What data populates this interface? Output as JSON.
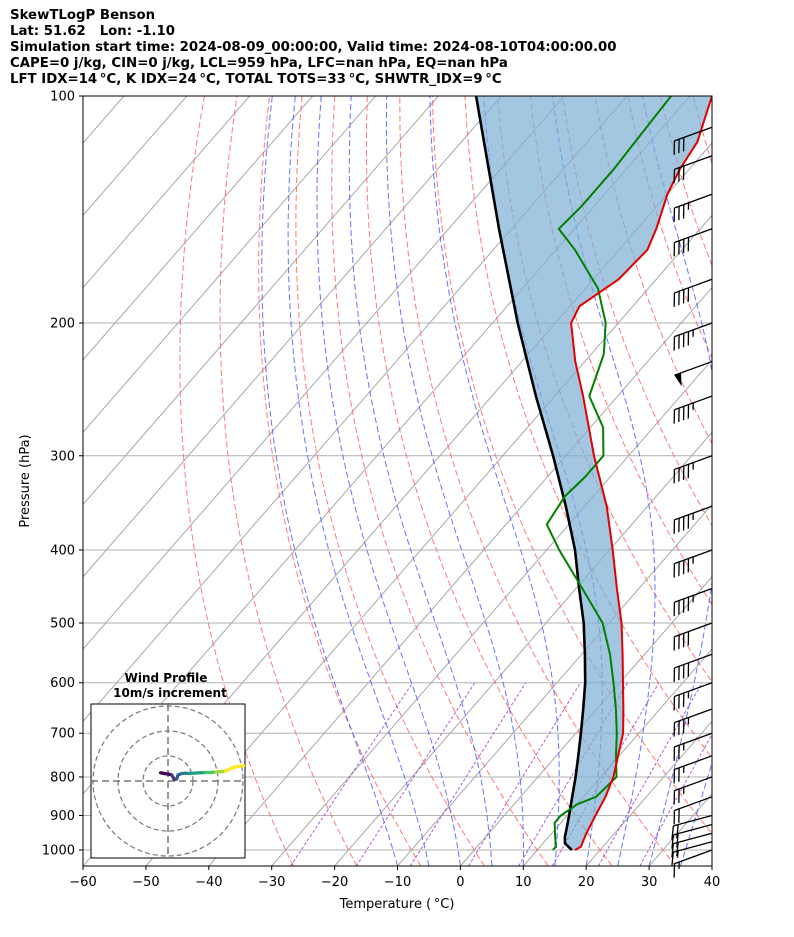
{
  "header": {
    "lines": [
      "SkewTLogP Benson",
      "Lat: 51.62   Lon: -1.10",
      "Simulation start time: 2024-08-09_00:00:00, Valid time: 2024-08-10T04:00:00.00",
      "CAPE=0 j/kg, CIN=0 j/kg, LCL=959 hPa, LFC=nan hPa, EQ=nan hPa",
      "LFT IDX=14 °C, K IDX=24 °C, TOTAL TOTS=33 °C, SHWTR_IDX=9 °C"
    ]
  },
  "chart_data": {
    "type": "skewt",
    "xlabel": "Temperature ( °C)",
    "ylabel": "Pressure (hPa)",
    "xlim": [
      -60,
      40
    ],
    "ylim_hpa": [
      1050,
      100
    ],
    "xticks": [
      -60,
      -50,
      -40,
      -30,
      -20,
      -10,
      0,
      10,
      20,
      30,
      40
    ],
    "yticks": [
      100,
      200,
      300,
      400,
      500,
      600,
      700,
      800,
      900,
      1000
    ],
    "colors": {
      "temperature": "#e00000",
      "dewpoint": "#008000",
      "parcel": "#000000",
      "cin_fill": "#7fb0d5",
      "dry_adiabat": "#ff6060",
      "moist_adiabat": "#4a5cff",
      "mixing_ratio": "#9933cc",
      "isotherm": "#a8a8a8",
      "grid": "#b0b0b0"
    },
    "temperature": [
      {
        "p": 1000,
        "t": 16.0
      },
      {
        "p": 990,
        "t": 16.5
      },
      {
        "p": 950,
        "t": 15.5
      },
      {
        "p": 900,
        "t": 14.5
      },
      {
        "p": 850,
        "t": 13.5
      },
      {
        "p": 800,
        "t": 12.0
      },
      {
        "p": 700,
        "t": 7.5
      },
      {
        "p": 650,
        "t": 4.2
      },
      {
        "p": 600,
        "t": 0.5
      },
      {
        "p": 550,
        "t": -3.5
      },
      {
        "p": 500,
        "t": -8.0
      },
      {
        "p": 450,
        "t": -13.5
      },
      {
        "p": 400,
        "t": -19.5
      },
      {
        "p": 350,
        "t": -26.5
      },
      {
        "p": 300,
        "t": -35.5
      },
      {
        "p": 250,
        "t": -45.5
      },
      {
        "p": 225,
        "t": -51.5
      },
      {
        "p": 200,
        "t": -57.5
      },
      {
        "p": 190,
        "t": -58.5
      },
      {
        "p": 175,
        "t": -56.0
      },
      {
        "p": 160,
        "t": -55.5
      },
      {
        "p": 150,
        "t": -57.0
      },
      {
        "p": 135,
        "t": -60.0
      },
      {
        "p": 125,
        "t": -61.5
      },
      {
        "p": 115,
        "t": -62.5
      },
      {
        "p": 100,
        "t": -66.5
      }
    ],
    "dewpoint": [
      {
        "p": 1000,
        "t": 12.5
      },
      {
        "p": 990,
        "t": 12.5
      },
      {
        "p": 950,
        "t": 10.5
      },
      {
        "p": 920,
        "t": 9.0
      },
      {
        "p": 900,
        "t": 9.0
      },
      {
        "p": 870,
        "t": 10.0
      },
      {
        "p": 850,
        "t": 12.0
      },
      {
        "p": 800,
        "t": 12.5
      },
      {
        "p": 750,
        "t": 9.5
      },
      {
        "p": 700,
        "t": 6.5
      },
      {
        "p": 650,
        "t": 3.0
      },
      {
        "p": 600,
        "t": -1.0
      },
      {
        "p": 550,
        "t": -5.5
      },
      {
        "p": 500,
        "t": -11.0
      },
      {
        "p": 450,
        "t": -19.0
      },
      {
        "p": 400,
        "t": -28.0
      },
      {
        "p": 370,
        "t": -33.5
      },
      {
        "p": 340,
        "t": -34.5
      },
      {
        "p": 320,
        "t": -34.0
      },
      {
        "p": 300,
        "t": -34.0
      },
      {
        "p": 275,
        "t": -38.0
      },
      {
        "p": 250,
        "t": -44.5
      },
      {
        "p": 220,
        "t": -48.0
      },
      {
        "p": 200,
        "t": -52.0
      },
      {
        "p": 180,
        "t": -58.0
      },
      {
        "p": 160,
        "t": -67.0
      },
      {
        "p": 150,
        "t": -72.5
      },
      {
        "p": 140,
        "t": -72.0
      },
      {
        "p": 125,
        "t": -72.0
      },
      {
        "p": 100,
        "t": -73.0
      }
    ],
    "parcel": [
      {
        "p": 1000,
        "t": 15.5
      },
      {
        "p": 980,
        "t": 13.5
      },
      {
        "p": 959,
        "t": 12.5
      },
      {
        "p": 950,
        "t": 12.2
      },
      {
        "p": 900,
        "t": 10.3
      },
      {
        "p": 850,
        "t": 8.2
      },
      {
        "p": 800,
        "t": 6.0
      },
      {
        "p": 750,
        "t": 3.5
      },
      {
        "p": 700,
        "t": 0.8
      },
      {
        "p": 650,
        "t": -2.2
      },
      {
        "p": 600,
        "t": -5.5
      },
      {
        "p": 550,
        "t": -9.5
      },
      {
        "p": 500,
        "t": -14.0
      },
      {
        "p": 450,
        "t": -19.5
      },
      {
        "p": 400,
        "t": -25.5
      },
      {
        "p": 350,
        "t": -33.0
      },
      {
        "p": 300,
        "t": -42.0
      },
      {
        "p": 250,
        "t": -53.0
      },
      {
        "p": 200,
        "t": -66.0
      },
      {
        "p": 150,
        "t": -82.0
      },
      {
        "p": 100,
        "t": -104.0
      }
    ],
    "wind_barbs": [
      {
        "p": 1000,
        "speed_kt": 15,
        "dir_deg": 250
      },
      {
        "p": 975,
        "speed_kt": 15,
        "dir_deg": 255
      },
      {
        "p": 950,
        "speed_kt": 20,
        "dir_deg": 255
      },
      {
        "p": 925,
        "speed_kt": 20,
        "dir_deg": 255
      },
      {
        "p": 900,
        "speed_kt": 20,
        "dir_deg": 255
      },
      {
        "p": 850,
        "speed_kt": 20,
        "dir_deg": 250
      },
      {
        "p": 800,
        "speed_kt": 25,
        "dir_deg": 250
      },
      {
        "p": 750,
        "speed_kt": 25,
        "dir_deg": 250
      },
      {
        "p": 700,
        "speed_kt": 25,
        "dir_deg": 250
      },
      {
        "p": 650,
        "speed_kt": 35,
        "dir_deg": 250
      },
      {
        "p": 600,
        "speed_kt": 35,
        "dir_deg": 250
      },
      {
        "p": 550,
        "speed_kt": 40,
        "dir_deg": 250
      },
      {
        "p": 500,
        "speed_kt": 40,
        "dir_deg": 250
      },
      {
        "p": 450,
        "speed_kt": 45,
        "dir_deg": 250
      },
      {
        "p": 400,
        "speed_kt": 45,
        "dir_deg": 250
      },
      {
        "p": 350,
        "speed_kt": 45,
        "dir_deg": 250
      },
      {
        "p": 300,
        "speed_kt": 45,
        "dir_deg": 250
      },
      {
        "p": 250,
        "speed_kt": 45,
        "dir_deg": 250
      },
      {
        "p": 225,
        "speed_kt": 50,
        "dir_deg": 250
      },
      {
        "p": 200,
        "speed_kt": 45,
        "dir_deg": 250
      },
      {
        "p": 175,
        "speed_kt": 40,
        "dir_deg": 250
      },
      {
        "p": 150,
        "speed_kt": 40,
        "dir_deg": 250
      },
      {
        "p": 135,
        "speed_kt": 35,
        "dir_deg": 250
      },
      {
        "p": 120,
        "speed_kt": 30,
        "dir_deg": 250
      },
      {
        "p": 110,
        "speed_kt": 30,
        "dir_deg": 250
      }
    ],
    "hodograph": {
      "title_line1": "Wind Profile",
      "title_line2": "10m/s increment",
      "ring_spacing_ms": 10,
      "trace": [
        {
          "u": -3.0,
          "v": 3.3
        },
        {
          "u": -1.5,
          "v": 3.0
        },
        {
          "u": 0.5,
          "v": 2.7
        },
        {
          "u": 1.5,
          "v": 2.4
        },
        {
          "u": 2.5,
          "v": 0.6
        },
        {
          "u": 3.5,
          "v": 0.8
        },
        {
          "u": 4.0,
          "v": 2.4
        },
        {
          "u": 5.5,
          "v": 3.0
        },
        {
          "u": 7.0,
          "v": 3.1
        },
        {
          "u": 9.0,
          "v": 3.0
        },
        {
          "u": 11.0,
          "v": 3.2
        },
        {
          "u": 13.0,
          "v": 3.3
        },
        {
          "u": 15.0,
          "v": 3.4
        },
        {
          "u": 17.0,
          "v": 3.4
        },
        {
          "u": 19.0,
          "v": 3.6
        },
        {
          "u": 21.0,
          "v": 3.7
        },
        {
          "u": 23.0,
          "v": 4.0
        },
        {
          "u": 26.0,
          "v": 5.4
        },
        {
          "u": 28.0,
          "v": 5.8
        },
        {
          "u": 30.5,
          "v": 6.2
        }
      ]
    }
  }
}
